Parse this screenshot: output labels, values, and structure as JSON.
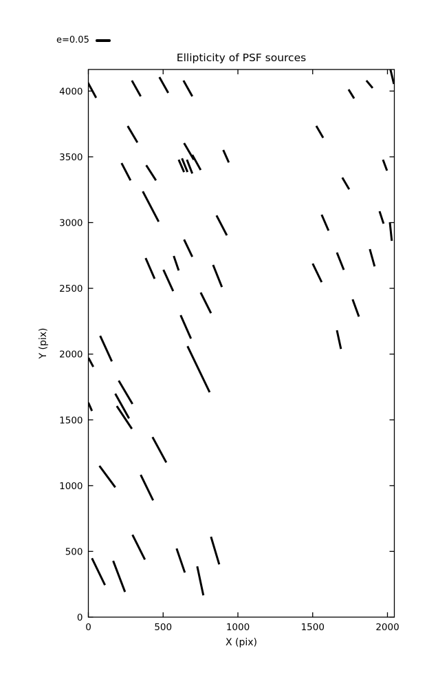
{
  "figure": {
    "background": "#ffffff",
    "foreground": "#000000"
  },
  "chart_data": {
    "type": "scatter",
    "variant": "ellipticity-whisker-segments",
    "title": "Ellipticity of PSF sources",
    "xlabel": "X (pix)",
    "ylabel": "Y (pix)",
    "xlim": [
      0,
      2046
    ],
    "ylim": [
      0,
      4164
    ],
    "xticks": [
      0,
      500,
      1000,
      1500,
      2000
    ],
    "yticks": [
      0,
      500,
      1000,
      1500,
      2000,
      2500,
      3000,
      3500,
      4000
    ],
    "grid": false,
    "legend": {
      "label": "e=0.05",
      "position": "above-plot-top-left",
      "sample_ellipticity": 0.05
    },
    "line_color": "#000000",
    "segments_format": "[x1, y1, x2, y2] in pixel data coordinates; each stick marks PSF ellipticity magnitude/orientation at that position",
    "segments": [
      [
        -8,
        4075,
        52,
        3949
      ],
      [
        291,
        4080,
        350,
        3960
      ],
      [
        475,
        4106,
        534,
        3986
      ],
      [
        636,
        4080,
        695,
        3960
      ],
      [
        263,
        3734,
        328,
        3609
      ],
      [
        640,
        3604,
        705,
        3478
      ],
      [
        695,
        3515,
        751,
        3400
      ],
      [
        604,
        3478,
        640,
        3384
      ],
      [
        626,
        3488,
        663,
        3384
      ],
      [
        659,
        3478,
        695,
        3373
      ],
      [
        902,
        3552,
        939,
        3457
      ],
      [
        222,
        3452,
        282,
        3321
      ],
      [
        387,
        3436,
        452,
        3321
      ],
      [
        364,
        3237,
        470,
        3007
      ],
      [
        1740,
        4012,
        1777,
        3944
      ],
      [
        1859,
        4080,
        1901,
        4023
      ],
      [
        2020,
        4164,
        2043,
        4054
      ],
      [
        1524,
        3735,
        1570,
        3645
      ],
      [
        1970,
        3478,
        1997,
        3395
      ],
      [
        1698,
        3342,
        1744,
        3253
      ],
      [
        857,
        3054,
        926,
        2903
      ],
      [
        640,
        2871,
        695,
        2740
      ],
      [
        571,
        2746,
        604,
        2636
      ],
      [
        383,
        2730,
        443,
        2573
      ],
      [
        502,
        2641,
        567,
        2479
      ],
      [
        834,
        2678,
        893,
        2510
      ],
      [
        751,
        2468,
        820,
        2311
      ],
      [
        617,
        2296,
        686,
        2118
      ],
      [
        1560,
        3060,
        1606,
        2939
      ],
      [
        1947,
        3086,
        1974,
        2992
      ],
      [
        2016,
        3002,
        2029,
        2861
      ],
      [
        1662,
        2772,
        1708,
        2641
      ],
      [
        1882,
        2798,
        1914,
        2667
      ],
      [
        1500,
        2688,
        1560,
        2547
      ],
      [
        1767,
        2416,
        1809,
        2285
      ],
      [
        1662,
        2181,
        1689,
        2039
      ],
      [
        79,
        2139,
        157,
        1945
      ],
      [
        1,
        1971,
        33,
        1903
      ],
      [
        203,
        1798,
        295,
        1621
      ],
      [
        180,
        1699,
        272,
        1511
      ],
      [
        190,
        1605,
        291,
        1432
      ],
      [
        0,
        1631,
        24,
        1568
      ],
      [
        429,
        1369,
        521,
        1176
      ],
      [
        663,
        2060,
        811,
        1710
      ],
      [
        74,
        1150,
        180,
        987
      ],
      [
        350,
        1082,
        433,
        888
      ],
      [
        295,
        626,
        378,
        438
      ],
      [
        24,
        448,
        111,
        244
      ],
      [
        166,
        428,
        245,
        192
      ],
      [
        590,
        522,
        645,
        339
      ],
      [
        728,
        386,
        769,
        166
      ],
      [
        820,
        611,
        875,
        401
      ]
    ]
  }
}
